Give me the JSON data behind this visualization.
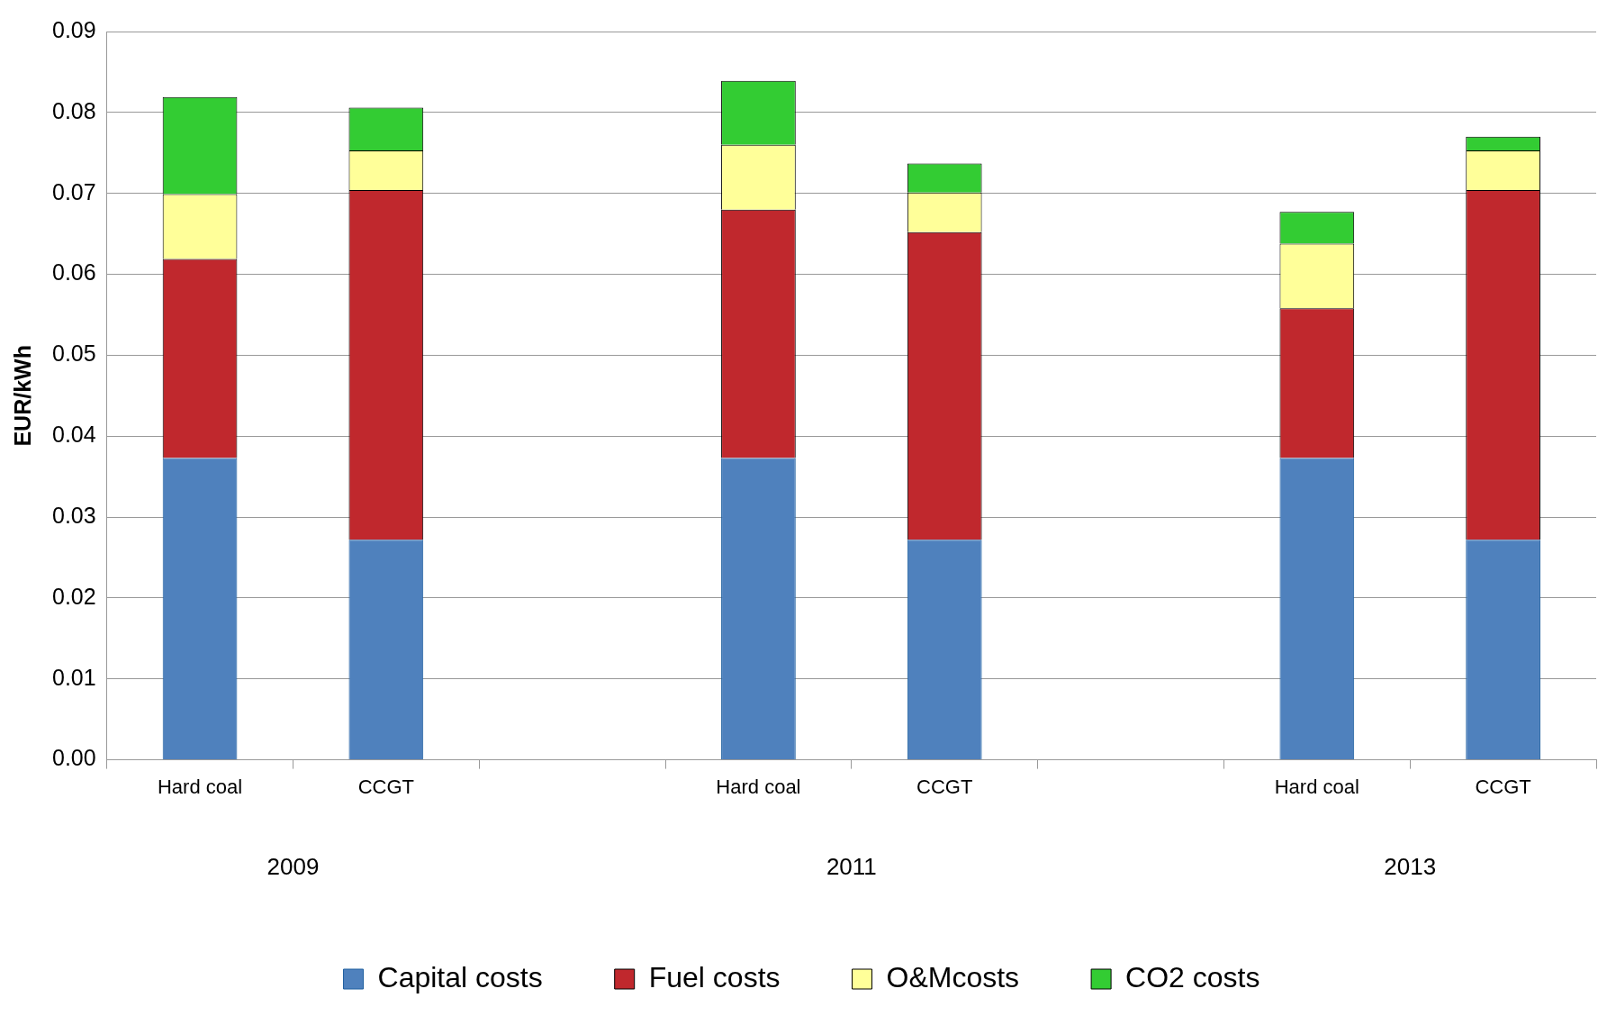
{
  "chart_data": {
    "type": "bar",
    "stacked": true,
    "ylabel": "EUR/kWh",
    "categories": [
      "Hard coal",
      "CCGT",
      null,
      "Hard coal",
      "CCGT",
      null,
      "Hard coal",
      "CCGT"
    ],
    "annotations": [
      "2009",
      "2011",
      "2013"
    ],
    "series": [
      {
        "name": "Capital costs",
        "color": "#4f81bd",
        "values": [
          0.0373,
          0.0272,
          null,
          0.0373,
          0.0272,
          null,
          0.0373,
          0.0272
        ]
      },
      {
        "name": "Fuel costs",
        "color": "#c0282d",
        "values": [
          0.0246,
          0.0432,
          null,
          0.0307,
          0.038,
          null,
          0.0185,
          0.0432
        ]
      },
      {
        "name": "O&Mcosts",
        "color": "#ffff99",
        "values": [
          0.008,
          0.0049,
          null,
          0.008,
          0.0049,
          null,
          0.008,
          0.0049
        ]
      },
      {
        "name": "CO2 costs",
        "color": "#33cc33",
        "values": [
          0.012,
          0.0053,
          null,
          0.0079,
          0.0036,
          null,
          0.0039,
          0.0017
        ]
      }
    ],
    "ylim": [
      0,
      0.09
    ],
    "yticks": [
      {
        "value": 0,
        "label": "0.00"
      },
      {
        "value": 0.01,
        "label": "0.01"
      },
      {
        "value": 0.02,
        "label": "0.02"
      },
      {
        "value": 0.03,
        "label": "0.03"
      },
      {
        "value": 0.04,
        "label": "0.04"
      },
      {
        "value": 0.05,
        "label": "0.05"
      },
      {
        "value": 0.06,
        "label": "0.06"
      },
      {
        "value": 0.07,
        "label": "0.07"
      },
      {
        "value": 0.08,
        "label": "0.08"
      },
      {
        "value": 0.09,
        "label": "0.09"
      }
    ],
    "grid": "y",
    "legend": "bottom"
  }
}
